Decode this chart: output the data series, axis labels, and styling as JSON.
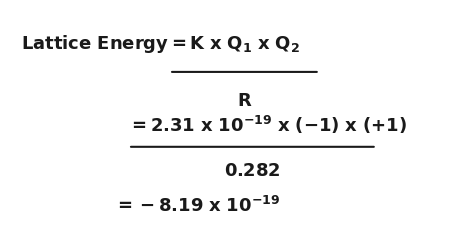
{
  "bg_color": "#ffffff",
  "text_color": "#1a1a1a",
  "font_size_main": 13,
  "font_size_sub": 8,
  "figsize": [
    4.74,
    2.36
  ],
  "dpi": 100
}
